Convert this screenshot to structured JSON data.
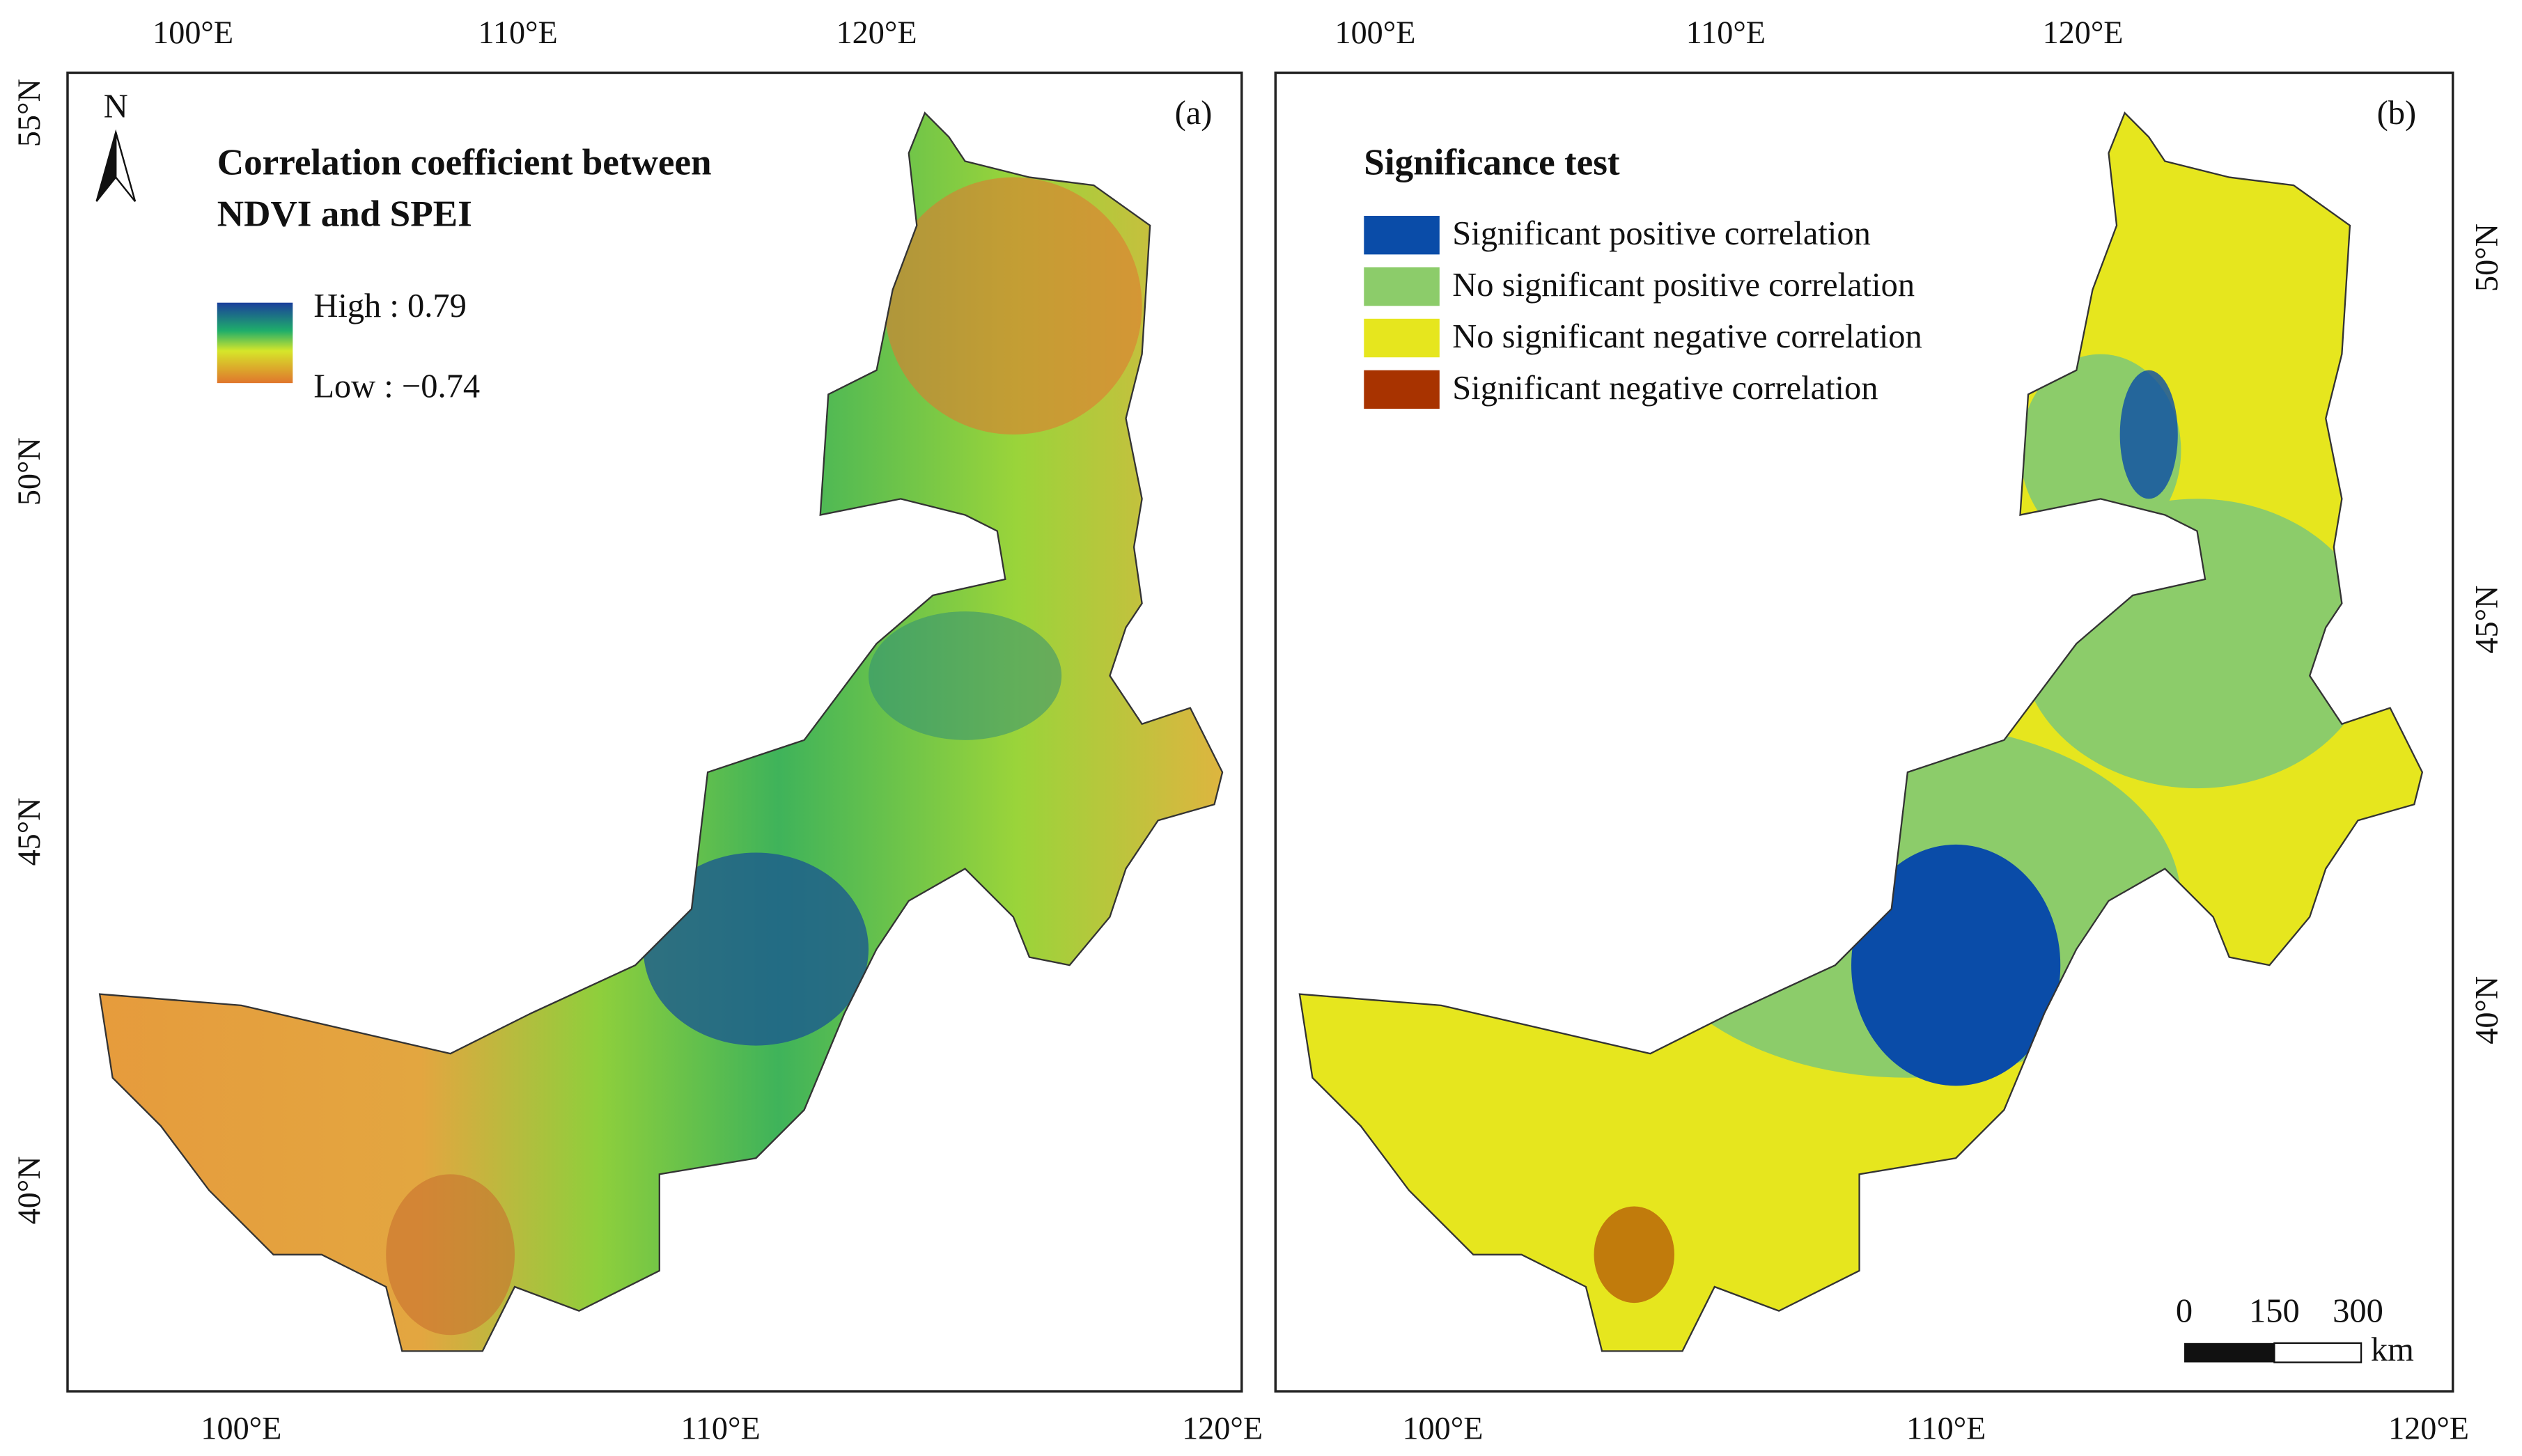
{
  "panels": [
    {
      "label": "(a)",
      "legend_title": [
        "Correlation coefficient between",
        "NDVI and SPEI"
      ],
      "legend_items": [
        "High : 0.79",
        "Low : −0.74"
      ],
      "x_ticks_top": [
        "100°E",
        "110°E",
        "120°E"
      ],
      "x_ticks_bottom": [
        "100°E",
        "110°E",
        "120°E"
      ],
      "y_ticks": [
        "55°N",
        "50°N",
        "45°N",
        "40°N"
      ]
    },
    {
      "label": "(b)",
      "legend_title": [
        "Significance test"
      ],
      "legend_items": [
        "Significant positive correlation",
        "No significant positive correlation",
        "No significant negative correlation",
        "Significant negative correlation"
      ],
      "x_ticks_top": [
        "100°E",
        "110°E",
        "120°E"
      ],
      "x_ticks_bottom": [
        "100°E",
        "110°E",
        "120°E"
      ],
      "y_ticks": [
        "50°N",
        "45°N",
        "40°N"
      ]
    }
  ],
  "north_arrow": "N",
  "scale_bar": {
    "labels": [
      "0",
      "150",
      "300"
    ],
    "unit": "km"
  }
}
